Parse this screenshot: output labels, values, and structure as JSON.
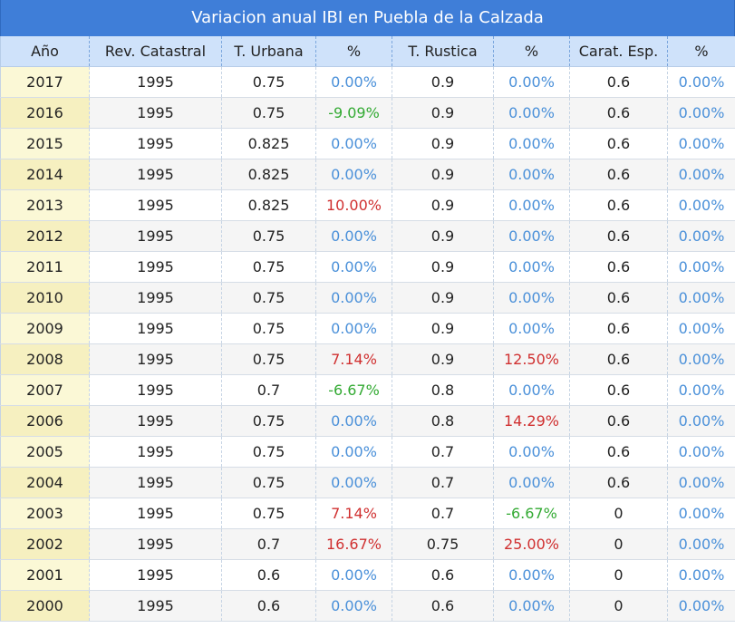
{
  "title": "Variacion anual IBI en Puebla de la Calzada",
  "headers": [
    "Año",
    "Rev. Catastral",
    "T. Urbana",
    "%",
    "T. Rustica",
    "%",
    "Carat. Esp.",
    "%"
  ],
  "colors": {
    "header_bg": "#cfe2fa",
    "title_bg": "#3f7ed8",
    "zero_pct": "#4a90d9",
    "positive_pct": "#d03030",
    "negative_pct": "#33aa33"
  },
  "rows": [
    [
      "2017",
      "1995",
      "0.75",
      "0.00%",
      "0.9",
      "0.00%",
      "0.6",
      "0.00%"
    ],
    [
      "2016",
      "1995",
      "0.75",
      "-9.09%",
      "0.9",
      "0.00%",
      "0.6",
      "0.00%"
    ],
    [
      "2015",
      "1995",
      "0.825",
      "0.00%",
      "0.9",
      "0.00%",
      "0.6",
      "0.00%"
    ],
    [
      "2014",
      "1995",
      "0.825",
      "0.00%",
      "0.9",
      "0.00%",
      "0.6",
      "0.00%"
    ],
    [
      "2013",
      "1995",
      "0.825",
      "10.00%",
      "0.9",
      "0.00%",
      "0.6",
      "0.00%"
    ],
    [
      "2012",
      "1995",
      "0.75",
      "0.00%",
      "0.9",
      "0.00%",
      "0.6",
      "0.00%"
    ],
    [
      "2011",
      "1995",
      "0.75",
      "0.00%",
      "0.9",
      "0.00%",
      "0.6",
      "0.00%"
    ],
    [
      "2010",
      "1995",
      "0.75",
      "0.00%",
      "0.9",
      "0.00%",
      "0.6",
      "0.00%"
    ],
    [
      "2009",
      "1995",
      "0.75",
      "0.00%",
      "0.9",
      "0.00%",
      "0.6",
      "0.00%"
    ],
    [
      "2008",
      "1995",
      "0.75",
      "7.14%",
      "0.9",
      "12.50%",
      "0.6",
      "0.00%"
    ],
    [
      "2007",
      "1995",
      "0.7",
      "-6.67%",
      "0.8",
      "0.00%",
      "0.6",
      "0.00%"
    ],
    [
      "2006",
      "1995",
      "0.75",
      "0.00%",
      "0.8",
      "14.29%",
      "0.6",
      "0.00%"
    ],
    [
      "2005",
      "1995",
      "0.75",
      "0.00%",
      "0.7",
      "0.00%",
      "0.6",
      "0.00%"
    ],
    [
      "2004",
      "1995",
      "0.75",
      "0.00%",
      "0.7",
      "0.00%",
      "0.6",
      "0.00%"
    ],
    [
      "2003",
      "1995",
      "0.75",
      "7.14%",
      "0.7",
      "-6.67%",
      "0",
      "0.00%"
    ],
    [
      "2002",
      "1995",
      "0.7",
      "16.67%",
      "0.75",
      "25.00%",
      "0",
      "0.00%"
    ],
    [
      "2001",
      "1995",
      "0.6",
      "0.00%",
      "0.6",
      "0.00%",
      "0",
      "0.00%"
    ],
    [
      "2000",
      "1995",
      "0.6",
      "0.00%",
      "0.6",
      "0.00%",
      "0",
      "0.00%"
    ]
  ]
}
